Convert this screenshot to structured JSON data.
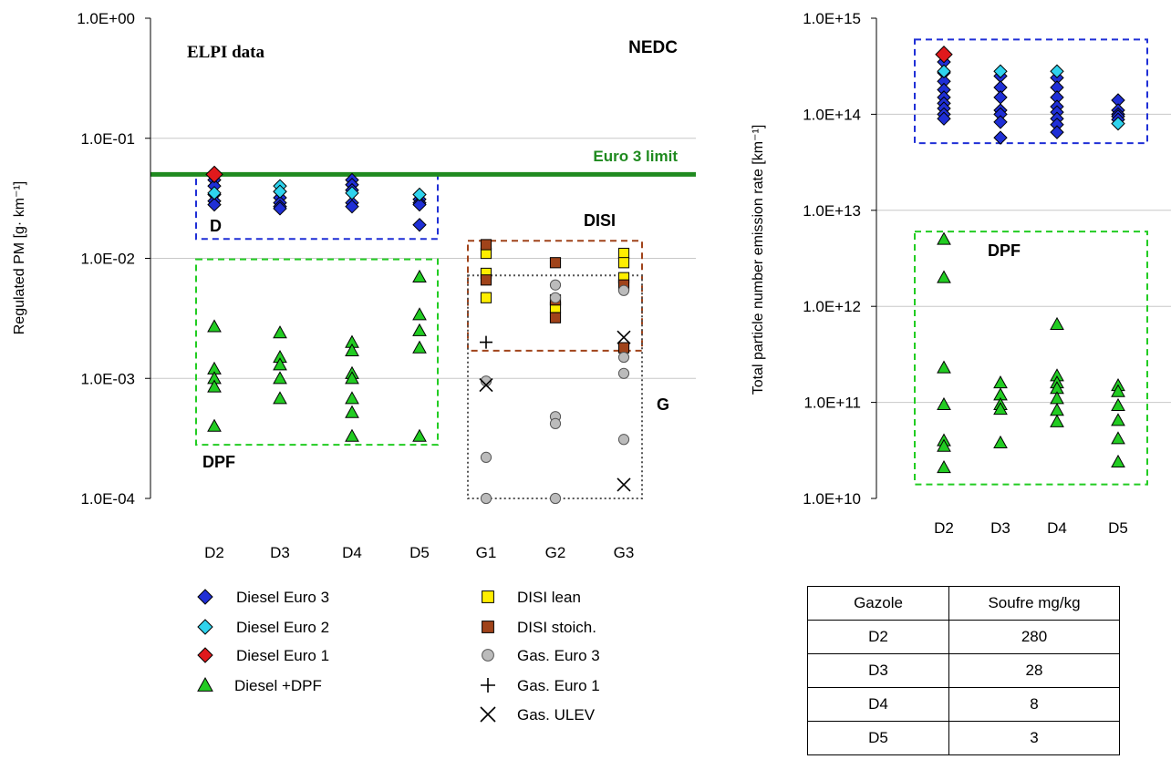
{
  "chart_data": [
    {
      "type": "scatter",
      "title": "",
      "ylabel": "Regulated PM [g· km⁻¹]",
      "xlabel": "",
      "yscale": "log",
      "ylim": [
        0.0001,
        1
      ],
      "yticks": [
        "1.0E-04",
        "1.0E-03",
        "1.0E-02",
        "1.0E-01",
        "1.0E+00"
      ],
      "categories": [
        "D2",
        "D3",
        "D4",
        "D5",
        "G1",
        "G2",
        "G3"
      ],
      "grid": true,
      "legend_position": "bottom",
      "annotations": {
        "top_left": "ELPI data",
        "top_right": "NEDC",
        "limit_label": "Euro 3 limit",
        "diesel_box": "D",
        "dpf_box": "DPF",
        "disi_box": "DISI",
        "gas_box": "G"
      },
      "limit_value": 0.05,
      "boxes": [
        {
          "label": "D",
          "color": "#1f2fd6",
          "x": [
            "D2",
            "D5"
          ],
          "y": [
            0.0145,
            0.05
          ]
        },
        {
          "label": "DPF",
          "color": "#22cc22",
          "x": [
            "D2",
            "D5"
          ],
          "y": [
            0.00028,
            0.0098
          ]
        },
        {
          "label": "DISI",
          "color": "#a0431a",
          "x": [
            "G1",
            "G3"
          ],
          "y": [
            0.0017,
            0.014
          ]
        },
        {
          "label": "G",
          "color": "#555555",
          "x": [
            "G1",
            "G3"
          ],
          "y": [
            0.0001,
            0.0072
          ]
        }
      ],
      "legend": [
        {
          "name": "Diesel Euro 3",
          "marker": "diamond",
          "color": "#1f2fd6"
        },
        {
          "name": "Diesel Euro 2",
          "marker": "diamond",
          "color": "#2fd3ee"
        },
        {
          "name": "Diesel Euro 1",
          "marker": "diamond",
          "color": "#e0191c"
        },
        {
          "name": "Diesel +DPF",
          "marker": "triangle",
          "color": "#22cc22"
        },
        {
          "name": "DISI lean",
          "marker": "square",
          "color": "#ffee00"
        },
        {
          "name": "DISI stoich.",
          "marker": "square",
          "color": "#a0431a"
        },
        {
          "name": "Gas. Euro 3",
          "marker": "circle",
          "color": "#bbbbbb"
        },
        {
          "name": "Gas. Euro 1",
          "marker": "plus",
          "color": "#000000"
        },
        {
          "name": "Gas. ULEV",
          "marker": "cross",
          "color": "#000000"
        }
      ],
      "series": [
        {
          "name": "Diesel Euro 3",
          "marker": "diamond",
          "color": "#1f2fd6",
          "points": [
            [
              "D2",
              0.045
            ],
            [
              "D2",
              0.04
            ],
            [
              "D2",
              0.034
            ],
            [
              "D2",
              0.03
            ],
            [
              "D2",
              0.028
            ],
            [
              "D3",
              0.036
            ],
            [
              "D3",
              0.032
            ],
            [
              "D3",
              0.029
            ],
            [
              "D3",
              0.027
            ],
            [
              "D3",
              0.026
            ],
            [
              "D4",
              0.045
            ],
            [
              "D4",
              0.041
            ],
            [
              "D4",
              0.037
            ],
            [
              "D4",
              0.029
            ],
            [
              "D4",
              0.027
            ],
            [
              "D5",
              0.031
            ],
            [
              "D5",
              0.029
            ],
            [
              "D5",
              0.028
            ],
            [
              "D5",
              0.019
            ]
          ]
        },
        {
          "name": "Diesel Euro 2",
          "marker": "diamond",
          "color": "#2fd3ee",
          "points": [
            [
              "D2",
              0.035
            ],
            [
              "D3",
              0.04
            ],
            [
              "D3",
              0.036
            ],
            [
              "D4",
              0.035
            ],
            [
              "D5",
              0.034
            ]
          ]
        },
        {
          "name": "Diesel Euro 1",
          "marker": "diamond",
          "color": "#e0191c",
          "points": [
            [
              "D2",
              0.05
            ]
          ]
        },
        {
          "name": "Diesel +DPF",
          "marker": "triangle",
          "color": "#22cc22",
          "points": [
            [
              "D2",
              0.0027
            ],
            [
              "D2",
              0.0012
            ],
            [
              "D2",
              0.001
            ],
            [
              "D2",
              0.00085
            ],
            [
              "D2",
              0.0004
            ],
            [
              "D3",
              0.0024
            ],
            [
              "D3",
              0.0015
            ],
            [
              "D3",
              0.0013
            ],
            [
              "D3",
              0.001
            ],
            [
              "D3",
              0.00068
            ],
            [
              "D4",
              0.002
            ],
            [
              "D4",
              0.0017
            ],
            [
              "D4",
              0.0011
            ],
            [
              "D4",
              0.001
            ],
            [
              "D4",
              0.00068
            ],
            [
              "D4",
              0.00052
            ],
            [
              "D4",
              0.00033
            ],
            [
              "D5",
              0.007
            ],
            [
              "D5",
              0.0034
            ],
            [
              "D5",
              0.0025
            ],
            [
              "D5",
              0.0018
            ],
            [
              "D5",
              0.00033
            ]
          ]
        },
        {
          "name": "DISI lean",
          "marker": "square",
          "color": "#ffee00",
          "points": [
            [
              "G1",
              0.011
            ],
            [
              "G1",
              0.0075
            ],
            [
              "G1",
              0.0047
            ],
            [
              "G2",
              0.0039
            ],
            [
              "G3",
              0.011
            ],
            [
              "G3",
              0.0092
            ],
            [
              "G3",
              0.0069
            ]
          ]
        },
        {
          "name": "DISI stoich.",
          "marker": "square",
          "color": "#a0431a",
          "points": [
            [
              "G1",
              0.013
            ],
            [
              "G1",
              0.0066
            ],
            [
              "G2",
              0.0092
            ],
            [
              "G2",
              0.0045
            ],
            [
              "G2",
              0.0032
            ],
            [
              "G3",
              0.006
            ],
            [
              "G3",
              0.0018
            ]
          ]
        },
        {
          "name": "Gas. Euro 3",
          "marker": "circle",
          "color": "#bbbbbb",
          "points": [
            [
              "G1",
              0.00095
            ],
            [
              "G1",
              0.00022
            ],
            [
              "G1",
              0.0001
            ],
            [
              "G2",
              0.006
            ],
            [
              "G2",
              0.0047
            ],
            [
              "G2",
              0.00048
            ],
            [
              "G2",
              0.00042
            ],
            [
              "G2",
              0.0001
            ],
            [
              "G3",
              0.0054
            ],
            [
              "G3",
              0.0015
            ],
            [
              "G3",
              0.0011
            ],
            [
              "G3",
              0.00031
            ]
          ]
        },
        {
          "name": "Gas. Euro 1",
          "marker": "plus",
          "color": "#000000",
          "points": [
            [
              "G1",
              0.002
            ]
          ]
        },
        {
          "name": "Gas. ULEV",
          "marker": "cross",
          "color": "#000000",
          "points": [
            [
              "G1",
              0.00088
            ],
            [
              "G3",
              0.0022
            ],
            [
              "G3",
              0.00013
            ]
          ]
        }
      ]
    },
    {
      "type": "scatter",
      "title": "",
      "ylabel": "Total particle number emission rate [km⁻¹]",
      "xlabel": "",
      "yscale": "log",
      "ylim": [
        10000000000.0,
        1000000000000000.0
      ],
      "yticks": [
        "1.0E+10",
        "1.0E+11",
        "1.0E+12",
        "1.0E+13",
        "1.0E+14",
        "1.0E+15"
      ],
      "categories": [
        "D2",
        "D3",
        "D4",
        "D5"
      ],
      "grid": true,
      "annotations": {
        "dpf_box": "DPF"
      },
      "boxes": [
        {
          "label": "",
          "color": "#1f2fd6",
          "x": [
            "D2",
            "D5"
          ],
          "y": [
            50000000000000.0,
            600000000000000.0
          ]
        },
        {
          "label": "DPF",
          "color": "#22cc22",
          "x": [
            "D2",
            "D5"
          ],
          "y": [
            14000000000.0,
            6000000000000.0
          ]
        }
      ],
      "series": [
        {
          "name": "Diesel Euro 3",
          "marker": "diamond",
          "color": "#1f2fd6",
          "points": [
            [
              "D2",
              350000000000000.0
            ],
            [
              "D2",
              270000000000000.0
            ],
            [
              "D2",
              220000000000000.0
            ],
            [
              "D2",
              180000000000000.0
            ],
            [
              "D2",
              150000000000000.0
            ],
            [
              "D2",
              130000000000000.0
            ],
            [
              "D2",
              115000000000000.0
            ],
            [
              "D2",
              100000000000000.0
            ],
            [
              "D2",
              90000000000000.0
            ],
            [
              "D3",
              250000000000000.0
            ],
            [
              "D3",
              190000000000000.0
            ],
            [
              "D3",
              150000000000000.0
            ],
            [
              "D3",
              110000000000000.0
            ],
            [
              "D3",
              100000000000000.0
            ],
            [
              "D3",
              83000000000000.0
            ],
            [
              "D3",
              57000000000000.0
            ],
            [
              "D4",
              240000000000000.0
            ],
            [
              "D4",
              190000000000000.0
            ],
            [
              "D4",
              150000000000000.0
            ],
            [
              "D4",
              120000000000000.0
            ],
            [
              "D4",
              105000000000000.0
            ],
            [
              "D4",
              90000000000000.0
            ],
            [
              "D4",
              78000000000000.0
            ],
            [
              "D4",
              65000000000000.0
            ],
            [
              "D5",
              140000000000000.0
            ],
            [
              "D5",
              110000000000000.0
            ],
            [
              "D5",
              100000000000000.0
            ],
            [
              "D5",
              95000000000000.0
            ],
            [
              "D5",
              88000000000000.0
            ]
          ]
        },
        {
          "name": "Diesel Euro 2",
          "marker": "diamond",
          "color": "#2fd3ee",
          "points": [
            [
              "D2",
              280000000000000.0
            ],
            [
              "D3",
              280000000000000.0
            ],
            [
              "D4",
              280000000000000.0
            ],
            [
              "D5",
              80000000000000.0
            ]
          ]
        },
        {
          "name": "Diesel Euro 1",
          "marker": "diamond",
          "color": "#e0191c",
          "points": [
            [
              "D2",
              420000000000000.0
            ]
          ]
        },
        {
          "name": "Diesel +DPF",
          "marker": "triangle",
          "color": "#22cc22",
          "points": [
            [
              "D2",
              5000000000000.0
            ],
            [
              "D2",
              2000000000000.0
            ],
            [
              "D2",
              230000000000.0
            ],
            [
              "D2",
              95000000000.0
            ],
            [
              "D2",
              40000000000.0
            ],
            [
              "D2",
              35000000000.0
            ],
            [
              "D2",
              21000000000.0
            ],
            [
              "D3",
              160000000000.0
            ],
            [
              "D3",
              120000000000.0
            ],
            [
              "D3",
              95000000000.0
            ],
            [
              "D3",
              85000000000.0
            ],
            [
              "D3",
              38000000000.0
            ],
            [
              "D4",
              650000000000.0
            ],
            [
              "D4",
              190000000000.0
            ],
            [
              "D4",
              160000000000.0
            ],
            [
              "D4",
              140000000000.0
            ],
            [
              "D4",
              110000000000.0
            ],
            [
              "D4",
              83000000000.0
            ],
            [
              "D4",
              63000000000.0
            ],
            [
              "D5",
              150000000000.0
            ],
            [
              "D5",
              130000000000.0
            ],
            [
              "D5",
              93000000000.0
            ],
            [
              "D5",
              65000000000.0
            ],
            [
              "D5",
              42000000000.0
            ],
            [
              "D5",
              24000000000.0
            ]
          ]
        }
      ]
    }
  ],
  "table": {
    "headers": [
      "Gazole",
      "Soufre mg/kg"
    ],
    "rows": [
      [
        "D2",
        "280"
      ],
      [
        "D3",
        "28"
      ],
      [
        "D4",
        "8"
      ],
      [
        "D5",
        "3"
      ]
    ]
  }
}
